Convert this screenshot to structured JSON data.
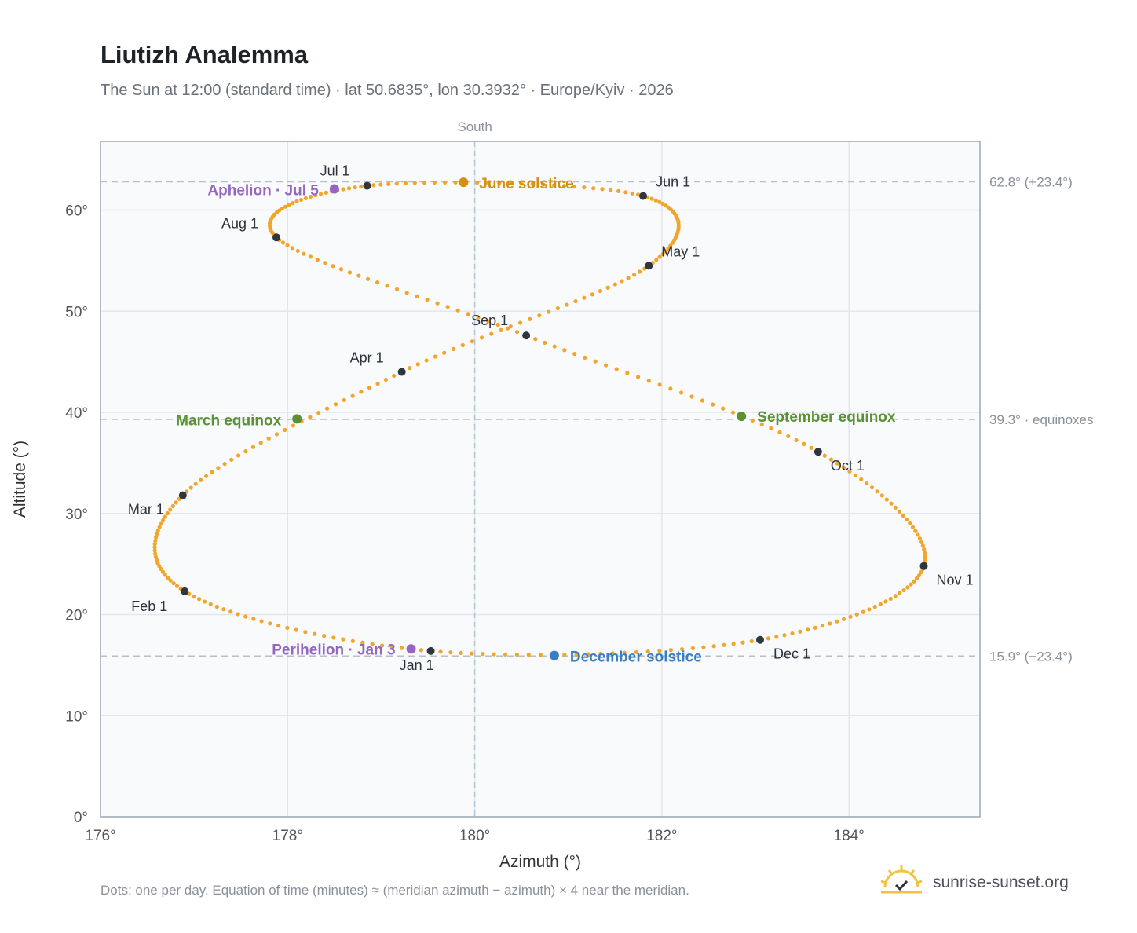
{
  "header": {
    "title": "Liutizh Analemma",
    "subtitle": "The Sun at 12:00 (standard time) · lat 50.6835°, lon 30.3932° · Europe/Kyiv · 2026"
  },
  "footer": {
    "note": "Dots: one per day. Equation of time (minutes) ≈ (meridian azimuth − azimuth) × 4 near the meridian.",
    "brand": "sunrise-sunset.org",
    "brand_icon": "sun-check-icon"
  },
  "colors": {
    "path": "#f2a52a",
    "month_marker": "#30363d",
    "june_solstice": "#d4900f",
    "december_solstice": "#3a7dc1",
    "equinox": "#5a9133",
    "perihelion_aphelion": "#9466c2",
    "plot_bg": "#f8fafc"
  },
  "chart_data": {
    "type": "scatter",
    "xlabel": "Azimuth (°)",
    "ylabel": "Altitude (°)",
    "xlim": [
      176,
      185.4
    ],
    "ylim": [
      0,
      66.8
    ],
    "xticks": [
      176,
      178,
      180,
      182,
      184
    ],
    "xtick_labels": [
      "176°",
      "178°",
      "180°",
      "182°",
      "184°"
    ],
    "yticks": [
      0,
      10,
      20,
      30,
      40,
      50,
      60
    ],
    "ytick_labels": [
      "0°",
      "10°",
      "20°",
      "30°",
      "40°",
      "50°",
      "60°"
    ],
    "grid": true,
    "meridian": {
      "x": 180,
      "label": "South"
    },
    "reference_lines": [
      {
        "y": 62.8,
        "label": "62.8° (+23.4°)"
      },
      {
        "y": 39.3,
        "label": "39.3° · equinoxes"
      },
      {
        "y": 15.9,
        "label": "15.9° (−23.4°)"
      }
    ],
    "month_markers": [
      {
        "label": "Jan 1",
        "x": 179.53,
        "y": 16.4
      },
      {
        "label": "Feb 1",
        "x": 176.9,
        "y": 22.3
      },
      {
        "label": "Mar 1",
        "x": 176.88,
        "y": 31.8
      },
      {
        "label": "Apr 1",
        "x": 179.22,
        "y": 44.0
      },
      {
        "label": "May 1",
        "x": 181.86,
        "y": 54.5
      },
      {
        "label": "Jun 1",
        "x": 181.8,
        "y": 61.4
      },
      {
        "label": "Jul 1",
        "x": 178.85,
        "y": 62.4
      },
      {
        "label": "Aug 1",
        "x": 177.88,
        "y": 57.3
      },
      {
        "label": "Sep 1",
        "x": 180.55,
        "y": 47.6
      },
      {
        "label": "Oct 1",
        "x": 183.67,
        "y": 36.1
      },
      {
        "label": "Nov 1",
        "x": 184.8,
        "y": 24.8
      },
      {
        "label": "Dec 1",
        "x": 183.05,
        "y": 17.5
      }
    ],
    "events": [
      {
        "label": "June solstice",
        "x": 179.88,
        "y": 62.75,
        "kind": "june_solstice"
      },
      {
        "label": "December solstice",
        "x": 180.85,
        "y": 15.95,
        "kind": "december_solstice"
      },
      {
        "label": "March equinox",
        "x": 178.1,
        "y": 39.35,
        "kind": "equinox"
      },
      {
        "label": "September equinox",
        "x": 182.85,
        "y": 39.6,
        "kind": "equinox"
      },
      {
        "label": "Perihelion · Jan 3",
        "x": 179.32,
        "y": 16.6,
        "kind": "perihelion_aphelion"
      },
      {
        "label": "Aphelion · Jul 5",
        "x": 178.5,
        "y": 62.1,
        "kind": "perihelion_aphelion"
      }
    ]
  }
}
